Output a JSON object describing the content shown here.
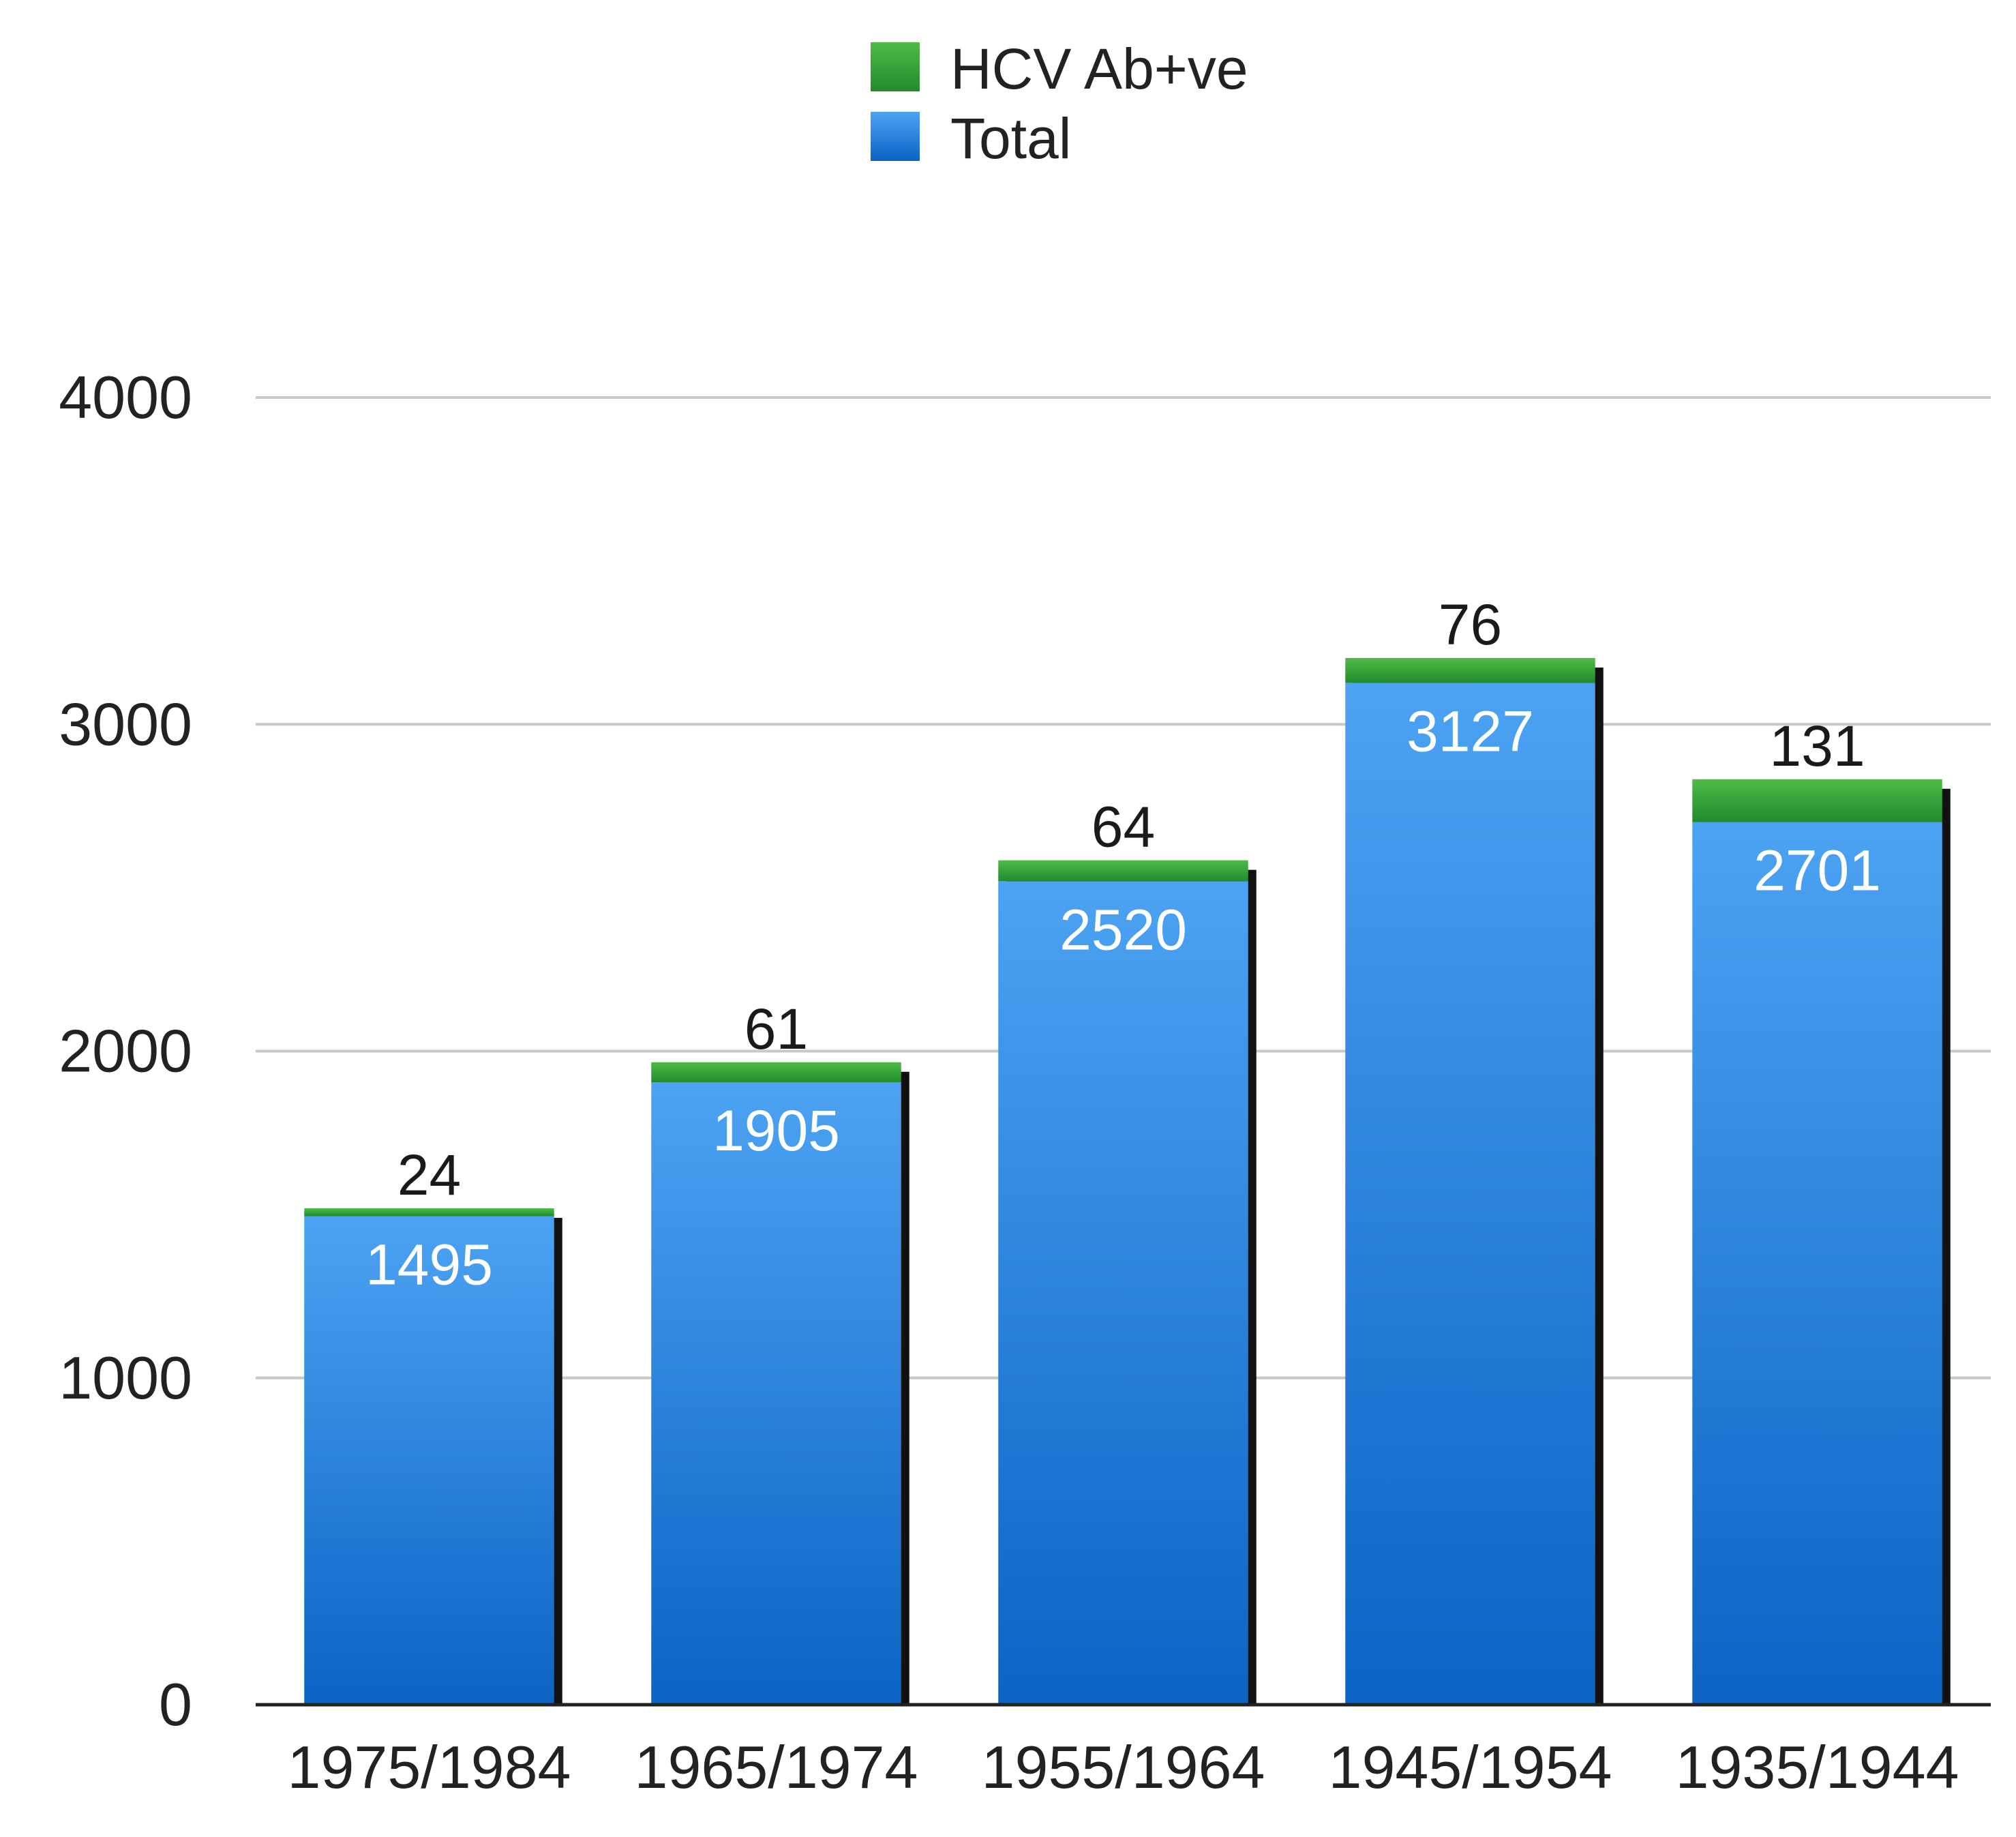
{
  "chart_data": {
    "type": "bar",
    "stacked": true,
    "categories": [
      "1975/1984",
      "1965/1974",
      "1955/1964",
      "1945/1954",
      "1935/1944"
    ],
    "series": [
      {
        "name": "Total",
        "values": [
          1495,
          1905,
          2520,
          3127,
          2701
        ],
        "color": "#2f86e6"
      },
      {
        "name": "HCV Ab+ve",
        "values": [
          24,
          61,
          64,
          76,
          131
        ],
        "color": "#3ea83a"
      }
    ],
    "legend": {
      "position": "top-center",
      "items": [
        "HCV Ab+ve",
        "Total"
      ]
    },
    "yticks": [
      "0",
      "1000",
      "2000",
      "3000",
      "4000"
    ],
    "ylim": [
      0,
      4000
    ],
    "grid": true,
    "data_labels": true,
    "title": "",
    "xlabel": "",
    "ylabel": ""
  }
}
